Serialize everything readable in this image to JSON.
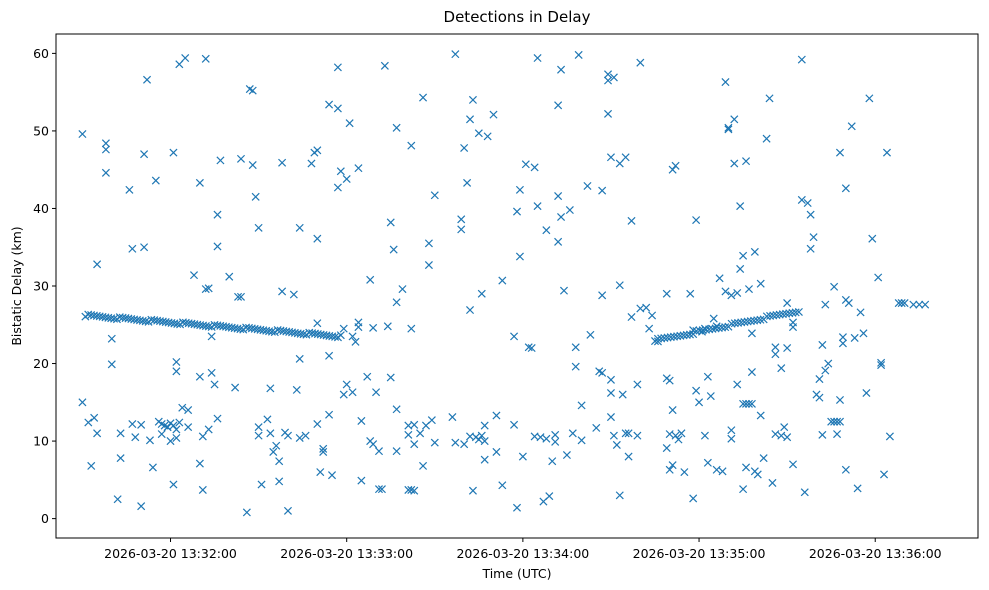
{
  "chart_data": {
    "type": "scatter",
    "title": "Detections in Delay",
    "xlabel": "Time (UTC)",
    "ylabel": "Bistatic Delay (km)",
    "marker": "x",
    "color": "#1f77b4",
    "xlim_seconds": [
      -39,
      275
    ],
    "ylim": [
      -2.5,
      62.5
    ],
    "x_ticks": [
      {
        "value": 0,
        "label": "2026-03-20 13:32:00"
      },
      {
        "value": 60,
        "label": "2026-03-20 13:33:00"
      },
      {
        "value": 120,
        "label": "2026-03-20 13:34:00"
      },
      {
        "value": 180,
        "label": "2026-03-20 13:35:00"
      },
      {
        "value": 240,
        "label": "2026-03-20 13:36:00"
      }
    ],
    "y_ticks": [
      0,
      10,
      20,
      30,
      40,
      50,
      60
    ],
    "x_reference_time": "2026-03-20 13:32:00",
    "track_1": {
      "t_start": -29,
      "t_end": 58,
      "delay_start": 26.2,
      "delay_end": 23.5,
      "count": 90
    },
    "track_2": {
      "t_start": 166,
      "t_end": 214,
      "delay_start": 23.0,
      "delay_end": 26.8,
      "count": 45
    },
    "cluster_points": [
      [
        -4,
        12.5
      ],
      [
        -3,
        12.2
      ],
      [
        -2,
        12.0
      ],
      [
        -1,
        11.8
      ],
      [
        0,
        12.3
      ],
      [
        1,
        12.0
      ],
      [
        2,
        11.5
      ],
      [
        3,
        12.4
      ],
      [
        104,
        10.5
      ],
      [
        105,
        10.2
      ],
      [
        106,
        10.7
      ],
      [
        107,
        10.0
      ],
      [
        169,
        18.1
      ],
      [
        170,
        17.8
      ],
      [
        195,
        14.8
      ],
      [
        196,
        14.8
      ],
      [
        197,
        14.8
      ],
      [
        198,
        14.8
      ],
      [
        225,
        12.5
      ],
      [
        226,
        12.5
      ],
      [
        227,
        12.5
      ],
      [
        228,
        12.5
      ],
      [
        248,
        27.8
      ],
      [
        249,
        27.8
      ],
      [
        250,
        27.8
      ],
      [
        253,
        27.6
      ],
      [
        255,
        27.6
      ],
      [
        257,
        27.6
      ]
    ],
    "scatter_points": [
      [
        -30,
        49.6
      ],
      [
        -30,
        15.0
      ],
      [
        -28,
        12.4
      ],
      [
        -27,
        6.8
      ],
      [
        -26,
        13.0
      ],
      [
        -25,
        32.8
      ],
      [
        -25,
        11.0
      ],
      [
        -22,
        48.4
      ],
      [
        -22,
        47.6
      ],
      [
        -22,
        44.6
      ],
      [
        -20,
        23.2
      ],
      [
        -20,
        19.9
      ],
      [
        -18,
        2.5
      ],
      [
        -17,
        11.0
      ],
      [
        -17,
        7.8
      ],
      [
        -14,
        42.4
      ],
      [
        -13,
        34.8
      ],
      [
        -13,
        12.2
      ],
      [
        -12,
        10.5
      ],
      [
        -10,
        12.1
      ],
      [
        -10,
        1.6
      ],
      [
        -9,
        35.0
      ],
      [
        -9,
        47.0
      ],
      [
        -8,
        56.6
      ],
      [
        -7,
        10.1
      ],
      [
        -6,
        6.6
      ],
      [
        -5,
        43.6
      ],
      [
        -3,
        10.9
      ],
      [
        -1,
        11.8
      ],
      [
        0,
        10.0
      ],
      [
        1,
        47.2
      ],
      [
        1,
        4.4
      ],
      [
        2,
        20.2
      ],
      [
        2,
        19.0
      ],
      [
        2,
        10.4
      ],
      [
        3,
        58.6
      ],
      [
        4,
        14.3
      ],
      [
        5,
        59.4
      ],
      [
        6,
        14.0
      ],
      [
        6,
        11.8
      ],
      [
        8,
        31.4
      ],
      [
        10,
        43.3
      ],
      [
        10,
        18.3
      ],
      [
        10,
        7.1
      ],
      [
        11,
        10.6
      ],
      [
        11,
        3.7
      ],
      [
        12,
        59.3
      ],
      [
        12,
        29.6
      ],
      [
        13,
        29.7
      ],
      [
        13,
        11.5
      ],
      [
        14,
        18.8
      ],
      [
        14,
        23.5
      ],
      [
        15,
        17.3
      ],
      [
        16,
        39.2
      ],
      [
        16,
        35.1
      ],
      [
        16,
        12.9
      ],
      [
        17,
        46.2
      ],
      [
        20,
        31.2
      ],
      [
        22,
        16.9
      ],
      [
        23,
        28.6
      ],
      [
        24,
        28.6
      ],
      [
        24,
        46.4
      ],
      [
        26,
        0.8
      ],
      [
        27,
        55.4
      ],
      [
        28,
        45.6
      ],
      [
        28,
        55.2
      ],
      [
        29,
        41.5
      ],
      [
        30,
        37.5
      ],
      [
        30,
        11.8
      ],
      [
        30,
        10.7
      ],
      [
        31,
        4.4
      ],
      [
        33,
        12.8
      ],
      [
        34,
        16.8
      ],
      [
        34,
        11.0
      ],
      [
        35,
        8.6
      ],
      [
        36,
        9.4
      ],
      [
        37,
        4.8
      ],
      [
        37,
        7.4
      ],
      [
        38,
        29.3
      ],
      [
        38,
        45.9
      ],
      [
        39,
        11.1
      ],
      [
        40,
        10.7
      ],
      [
        40,
        1.0
      ],
      [
        42,
        28.9
      ],
      [
        43,
        16.6
      ],
      [
        44,
        20.6
      ],
      [
        44,
        10.4
      ],
      [
        44,
        37.5
      ],
      [
        46,
        10.7
      ],
      [
        48,
        45.8
      ],
      [
        49,
        47.2
      ],
      [
        50,
        47.5
      ],
      [
        50,
        36.1
      ],
      [
        50,
        25.2
      ],
      [
        50,
        12.2
      ],
      [
        51,
        6.0
      ],
      [
        52,
        9.0
      ],
      [
        52,
        8.6
      ],
      [
        54,
        53.4
      ],
      [
        54,
        21.0
      ],
      [
        54,
        13.4
      ],
      [
        55,
        5.6
      ],
      [
        57,
        52.9
      ],
      [
        57,
        42.7
      ],
      [
        57,
        58.2
      ],
      [
        58,
        44.8
      ],
      [
        59,
        24.5
      ],
      [
        59,
        16.0
      ],
      [
        60,
        17.3
      ],
      [
        60,
        43.8
      ],
      [
        61,
        51.0
      ],
      [
        62,
        23.5
      ],
      [
        62,
        16.3
      ],
      [
        63,
        22.8
      ],
      [
        64,
        24.7
      ],
      [
        64,
        25.3
      ],
      [
        64,
        45.2
      ],
      [
        65,
        12.6
      ],
      [
        65,
        4.9
      ],
      [
        67,
        18.3
      ],
      [
        68,
        30.8
      ],
      [
        68,
        10.0
      ],
      [
        69,
        24.6
      ],
      [
        69,
        9.6
      ],
      [
        70,
        16.3
      ],
      [
        71,
        8.7
      ],
      [
        71,
        3.8
      ],
      [
        72,
        3.8
      ],
      [
        73,
        58.4
      ],
      [
        74,
        24.8
      ],
      [
        75,
        38.2
      ],
      [
        75,
        18.2
      ],
      [
        76,
        34.7
      ],
      [
        77,
        27.9
      ],
      [
        77,
        50.4
      ],
      [
        77,
        14.1
      ],
      [
        77,
        8.7
      ],
      [
        79,
        29.6
      ],
      [
        81,
        12.0
      ],
      [
        81,
        10.8
      ],
      [
        81,
        3.7
      ],
      [
        82,
        3.7
      ],
      [
        82,
        24.5
      ],
      [
        82,
        48.1
      ],
      [
        83,
        3.6
      ],
      [
        83,
        9.6
      ],
      [
        83,
        12.1
      ],
      [
        85,
        11.0
      ],
      [
        86,
        54.3
      ],
      [
        86,
        6.8
      ],
      [
        87,
        12.0
      ],
      [
        88,
        35.5
      ],
      [
        88,
        32.7
      ],
      [
        89,
        12.7
      ],
      [
        90,
        41.7
      ],
      [
        90,
        9.8
      ],
      [
        96,
        13.1
      ],
      [
        97,
        59.9
      ],
      [
        97,
        9.8
      ],
      [
        99,
        37.3
      ],
      [
        99,
        38.6
      ],
      [
        100,
        47.8
      ],
      [
        100,
        9.6
      ],
      [
        101,
        43.3
      ],
      [
        102,
        51.5
      ],
      [
        102,
        26.9
      ],
      [
        102,
        10.6
      ],
      [
        103,
        54.0
      ],
      [
        103,
        3.6
      ],
      [
        105,
        49.7
      ],
      [
        106,
        29.0
      ],
      [
        107,
        12.0
      ],
      [
        107,
        7.6
      ],
      [
        108,
        49.3
      ],
      [
        110,
        52.1
      ],
      [
        111,
        13.3
      ],
      [
        111,
        8.6
      ],
      [
        113,
        30.7
      ],
      [
        113,
        4.3
      ],
      [
        117,
        23.5
      ],
      [
        117,
        12.1
      ],
      [
        118,
        39.6
      ],
      [
        118,
        1.4
      ],
      [
        119,
        33.8
      ],
      [
        119,
        42.4
      ],
      [
        120,
        8.0
      ],
      [
        121,
        45.7
      ],
      [
        122,
        22.1
      ],
      [
        123,
        22.0
      ],
      [
        124,
        45.3
      ],
      [
        124,
        10.6
      ],
      [
        125,
        40.3
      ],
      [
        125,
        59.4
      ],
      [
        126,
        10.5
      ],
      [
        127,
        2.2
      ],
      [
        128,
        37.2
      ],
      [
        128,
        10.3
      ],
      [
        129,
        2.9
      ],
      [
        130,
        7.4
      ],
      [
        131,
        9.9
      ],
      [
        131,
        10.8
      ],
      [
        132,
        35.7
      ],
      [
        132,
        41.6
      ],
      [
        132,
        53.3
      ],
      [
        133,
        57.9
      ],
      [
        133,
        38.9
      ],
      [
        134,
        29.4
      ],
      [
        135,
        8.2
      ],
      [
        136,
        39.8
      ],
      [
        137,
        11.0
      ],
      [
        138,
        22.1
      ],
      [
        138,
        19.6
      ],
      [
        139,
        59.8
      ],
      [
        140,
        14.6
      ],
      [
        140,
        10.1
      ],
      [
        142,
        42.9
      ],
      [
        143,
        23.7
      ],
      [
        145,
        11.7
      ],
      [
        146,
        19.0
      ],
      [
        147,
        18.8
      ],
      [
        147,
        42.3
      ],
      [
        147,
        28.8
      ],
      [
        149,
        56.5
      ],
      [
        149,
        57.3
      ],
      [
        149,
        52.2
      ],
      [
        150,
        46.6
      ],
      [
        150,
        17.9
      ],
      [
        150,
        16.2
      ],
      [
        150,
        13.1
      ],
      [
        151,
        10.7
      ],
      [
        151,
        56.9
      ],
      [
        152,
        9.5
      ],
      [
        153,
        45.8
      ],
      [
        153,
        30.1
      ],
      [
        153,
        3.0
      ],
      [
        154,
        16.0
      ],
      [
        155,
        46.6
      ],
      [
        155,
        11.0
      ],
      [
        156,
        8.0
      ],
      [
        156,
        11.0
      ],
      [
        157,
        26.0
      ],
      [
        157,
        38.4
      ],
      [
        159,
        17.3
      ],
      [
        159,
        10.7
      ],
      [
        160,
        58.8
      ],
      [
        160,
        27.1
      ],
      [
        162,
        27.2
      ],
      [
        163,
        24.5
      ],
      [
        164,
        26.2
      ],
      [
        165,
        22.9
      ],
      [
        166,
        23.2
      ],
      [
        169,
        9.1
      ],
      [
        169,
        29.0
      ],
      [
        170,
        6.3
      ],
      [
        170,
        10.9
      ],
      [
        171,
        45.0
      ],
      [
        171,
        14.0
      ],
      [
        171,
        6.9
      ],
      [
        172,
        45.5
      ],
      [
        172,
        10.7
      ],
      [
        173,
        10.2
      ],
      [
        174,
        11.0
      ],
      [
        175,
        6.0
      ],
      [
        177,
        29.0
      ],
      [
        178,
        24.3
      ],
      [
        178,
        2.6
      ],
      [
        179,
        16.5
      ],
      [
        179,
        38.5
      ],
      [
        180,
        15.0
      ],
      [
        181,
        24.1
      ],
      [
        182,
        24.5
      ],
      [
        182,
        10.7
      ],
      [
        183,
        18.3
      ],
      [
        183,
        7.2
      ],
      [
        184,
        15.8
      ],
      [
        185,
        25.8
      ],
      [
        186,
        6.3
      ],
      [
        186,
        24.8
      ],
      [
        187,
        31.0
      ],
      [
        188,
        6.1
      ],
      [
        189,
        56.3
      ],
      [
        189,
        29.3
      ],
      [
        190,
        50.2
      ],
      [
        190,
        50.4
      ],
      [
        191,
        28.8
      ],
      [
        191,
        11.4
      ],
      [
        191,
        10.3
      ],
      [
        192,
        51.5
      ],
      [
        192,
        45.8
      ],
      [
        193,
        29.1
      ],
      [
        193,
        17.3
      ],
      [
        194,
        40.3
      ],
      [
        194,
        32.2
      ],
      [
        195,
        33.9
      ],
      [
        195,
        3.8
      ],
      [
        196,
        46.1
      ],
      [
        196,
        6.6
      ],
      [
        197,
        29.6
      ],
      [
        198,
        18.9
      ],
      [
        198,
        23.9
      ],
      [
        199,
        34.4
      ],
      [
        199,
        6.1
      ],
      [
        200,
        5.7
      ],
      [
        201,
        30.3
      ],
      [
        201,
        13.3
      ],
      [
        202,
        7.8
      ],
      [
        203,
        49.0
      ],
      [
        204,
        54.2
      ],
      [
        205,
        4.6
      ],
      [
        206,
        10.9
      ],
      [
        206,
        22.1
      ],
      [
        206,
        21.2
      ],
      [
        208,
        10.7
      ],
      [
        208,
        19.4
      ],
      [
        209,
        11.8
      ],
      [
        210,
        10.5
      ],
      [
        210,
        22.0
      ],
      [
        210,
        27.8
      ],
      [
        212,
        25.3
      ],
      [
        212,
        24.7
      ],
      [
        212,
        7.0
      ],
      [
        215,
        59.2
      ],
      [
        215,
        41.1
      ],
      [
        216,
        3.4
      ],
      [
        217,
        40.7
      ],
      [
        218,
        34.8
      ],
      [
        218,
        39.2
      ],
      [
        219,
        36.3
      ],
      [
        220,
        16.0
      ],
      [
        221,
        15.6
      ],
      [
        221,
        18.0
      ],
      [
        222,
        10.8
      ],
      [
        222,
        22.4
      ],
      [
        223,
        27.6
      ],
      [
        223,
        19.1
      ],
      [
        224,
        20.0
      ],
      [
        226,
        29.9
      ],
      [
        227,
        10.9
      ],
      [
        228,
        47.2
      ],
      [
        228,
        15.3
      ],
      [
        229,
        22.6
      ],
      [
        229,
        23.4
      ],
      [
        230,
        6.3
      ],
      [
        230,
        28.2
      ],
      [
        230,
        42.6
      ],
      [
        231,
        27.8
      ],
      [
        232,
        50.6
      ],
      [
        233,
        23.3
      ],
      [
        234,
        3.9
      ],
      [
        235,
        26.6
      ],
      [
        236,
        23.9
      ],
      [
        237,
        16.2
      ],
      [
        238,
        54.2
      ],
      [
        239,
        36.1
      ],
      [
        241,
        31.1
      ],
      [
        242,
        20.1
      ],
      [
        242,
        19.8
      ],
      [
        243,
        5.7
      ],
      [
        244,
        47.2
      ],
      [
        245,
        10.6
      ]
    ]
  }
}
